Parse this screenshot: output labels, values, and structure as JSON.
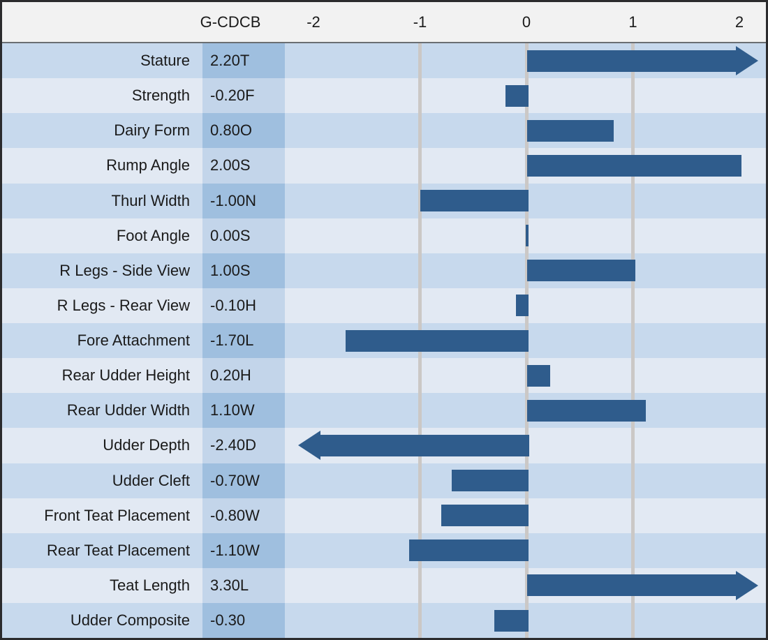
{
  "header": {
    "value_column_label": "G-CDCB"
  },
  "colors": {
    "bar": "#2f5c8c",
    "row_dark": "#c7d9ed",
    "row_light": "#e2e9f3",
    "value_cell_dark": "#9fbfdf",
    "value_cell_light": "#c3d5ea",
    "gridline": "#cbc8c6",
    "header_bg": "#f2f2f2",
    "outer_border": "#2b2b2d"
  },
  "chart_data": {
    "type": "bar",
    "orientation": "horizontal",
    "value_column_label": "G-CDCB",
    "x_ticks": [
      -2,
      -1,
      0,
      1,
      2
    ],
    "gridline_values": [
      -1,
      0,
      1
    ],
    "xlim": [
      -2.27,
      2.27
    ],
    "legend": "none",
    "rows": [
      {
        "trait": "Stature",
        "value_label": "2.20T",
        "value": 2.2,
        "overflow": "right"
      },
      {
        "trait": "Strength",
        "value_label": "-0.20F",
        "value": -0.2,
        "overflow": null
      },
      {
        "trait": "Dairy Form",
        "value_label": "0.80O",
        "value": 0.8,
        "overflow": null
      },
      {
        "trait": "Rump Angle",
        "value_label": "2.00S",
        "value": 2.0,
        "overflow": null
      },
      {
        "trait": "Thurl Width",
        "value_label": "-1.00N",
        "value": -1.0,
        "overflow": null
      },
      {
        "trait": "Foot Angle",
        "value_label": "0.00S",
        "value": 0.0,
        "overflow": null
      },
      {
        "trait": "R Legs - Side View",
        "value_label": "1.00S",
        "value": 1.0,
        "overflow": null
      },
      {
        "trait": "R Legs - Rear View",
        "value_label": "-0.10H",
        "value": -0.1,
        "overflow": null
      },
      {
        "trait": "Fore Attachment",
        "value_label": "-1.70L",
        "value": -1.7,
        "overflow": null
      },
      {
        "trait": "Rear Udder Height",
        "value_label": "0.20H",
        "value": 0.2,
        "overflow": null
      },
      {
        "trait": "Rear Udder Width",
        "value_label": "1.10W",
        "value": 1.1,
        "overflow": null
      },
      {
        "trait": "Udder Depth",
        "value_label": "-2.40D",
        "value": -2.4,
        "overflow": "left"
      },
      {
        "trait": "Udder Cleft",
        "value_label": "-0.70W",
        "value": -0.7,
        "overflow": null
      },
      {
        "trait": "Front Teat Placement",
        "value_label": "-0.80W",
        "value": -0.8,
        "overflow": null
      },
      {
        "trait": "Rear Teat Placement",
        "value_label": "-1.10W",
        "value": -1.1,
        "overflow": null
      },
      {
        "trait": "Teat Length",
        "value_label": "3.30L",
        "value": 3.3,
        "overflow": "right"
      },
      {
        "trait": "Udder Composite",
        "value_label": "-0.30",
        "value": -0.3,
        "overflow": null
      }
    ]
  }
}
